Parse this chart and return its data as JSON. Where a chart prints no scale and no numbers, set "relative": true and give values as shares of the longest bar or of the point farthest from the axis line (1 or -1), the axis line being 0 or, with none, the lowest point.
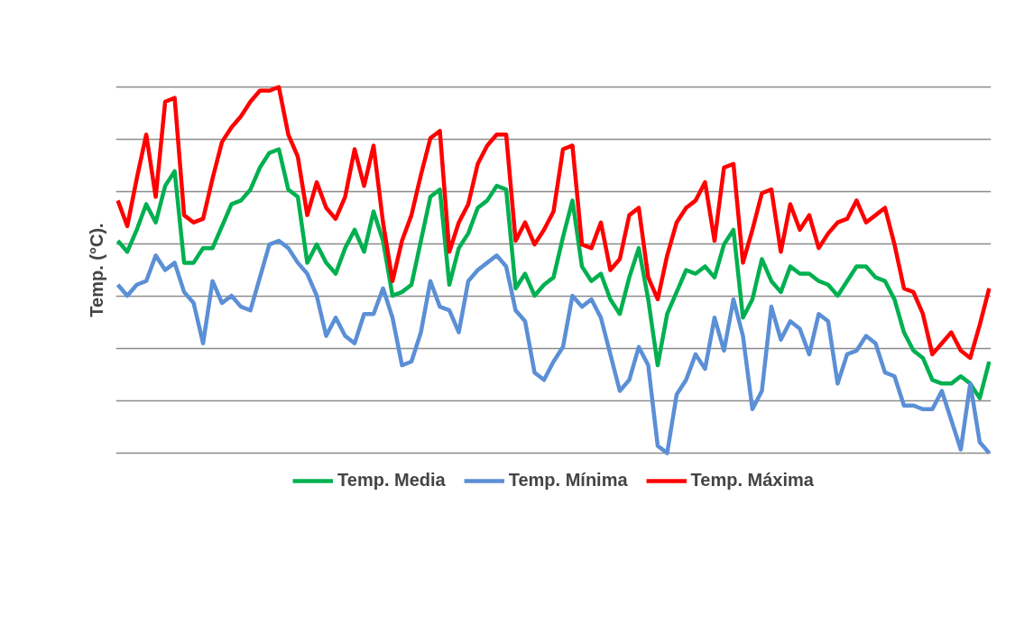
{
  "chart_data": {
    "type": "line",
    "ylabel": "Temp. (°C).",
    "relative": true,
    "grid": "y",
    "legend": "bottom",
    "tick_labels": false,
    "marker": "none",
    "line_style": "solid",
    "categories": [
      null,
      null,
      null,
      null,
      null,
      null,
      null,
      null,
      null,
      null,
      null,
      null,
      null,
      null,
      null,
      null,
      null,
      null,
      null,
      null,
      null,
      null,
      null,
      null,
      null,
      null,
      null,
      null,
      null,
      null,
      null,
      null,
      null,
      null,
      null,
      null,
      null,
      null,
      null,
      null,
      null,
      null,
      null,
      null,
      null,
      null,
      null,
      null,
      null,
      null,
      null,
      null,
      null,
      null,
      null,
      null,
      null,
      null,
      null,
      null,
      null,
      null,
      null,
      null,
      null,
      null,
      null,
      null,
      null,
      null,
      null,
      null,
      null,
      null,
      null,
      null,
      null,
      null,
      null,
      null,
      null,
      null,
      null,
      null,
      null,
      null,
      null,
      null,
      null,
      null,
      null,
      null,
      null
    ],
    "series": [
      {
        "name": "Temp. Media",
        "color": "#00b050",
        "values": [
          0.58,
          0.55,
          0.61,
          0.68,
          0.63,
          0.73,
          0.77,
          0.52,
          0.52,
          0.56,
          0.56,
          0.62,
          0.68,
          0.69,
          0.72,
          0.78,
          0.82,
          0.83,
          0.72,
          0.7,
          0.52,
          0.57,
          0.52,
          0.49,
          0.56,
          0.61,
          0.55,
          0.66,
          0.58,
          0.43,
          0.44,
          0.46,
          0.58,
          0.7,
          0.72,
          0.46,
          0.56,
          0.6,
          0.67,
          0.69,
          0.73,
          0.72,
          0.45,
          0.49,
          0.43,
          0.46,
          0.48,
          0.59,
          0.69,
          0.51,
          0.47,
          0.49,
          0.42,
          0.38,
          0.48,
          0.56,
          0.42,
          0.24,
          0.38,
          0.44,
          0.5,
          0.49,
          0.51,
          0.48,
          0.57,
          0.61,
          0.37,
          0.42,
          0.53,
          0.47,
          0.44,
          0.51,
          0.49,
          0.49,
          0.47,
          0.46,
          0.43,
          0.47,
          0.51,
          0.51,
          0.48,
          0.47,
          0.42,
          0.33,
          0.28,
          0.26,
          0.2,
          0.19,
          0.19,
          0.21,
          0.19,
          0.15,
          0.25
        ]
      },
      {
        "name": "Temp. Mínima",
        "color": "#5b8fd6",
        "values": [
          0.46,
          0.43,
          0.46,
          0.47,
          0.54,
          0.5,
          0.52,
          0.44,
          0.41,
          0.3,
          0.47,
          0.41,
          0.43,
          0.4,
          0.39,
          0.48,
          0.57,
          0.58,
          0.56,
          0.52,
          0.49,
          0.43,
          0.32,
          0.37,
          0.32,
          0.3,
          0.38,
          0.38,
          0.45,
          0.37,
          0.24,
          0.25,
          0.33,
          0.47,
          0.4,
          0.39,
          0.33,
          0.47,
          0.5,
          0.52,
          0.54,
          0.51,
          0.39,
          0.36,
          0.22,
          0.2,
          0.25,
          0.29,
          0.43,
          0.4,
          0.42,
          0.37,
          0.27,
          0.17,
          0.2,
          0.29,
          0.24,
          0.02,
          0.0,
          0.16,
          0.2,
          0.27,
          0.23,
          0.37,
          0.28,
          0.42,
          0.32,
          0.12,
          0.17,
          0.4,
          0.31,
          0.36,
          0.34,
          0.27,
          0.38,
          0.36,
          0.19,
          0.27,
          0.28,
          0.32,
          0.3,
          0.22,
          0.21,
          0.13,
          0.13,
          0.12,
          0.12,
          0.17,
          0.09,
          0.01,
          0.19,
          0.03,
          0.0
        ]
      },
      {
        "name": "Temp. Máxima",
        "color": "#ff0000",
        "values": [
          0.69,
          0.62,
          0.75,
          0.87,
          0.7,
          0.96,
          0.97,
          0.65,
          0.63,
          0.64,
          0.75,
          0.85,
          0.89,
          0.92,
          0.96,
          0.99,
          0.99,
          1.0,
          0.87,
          0.81,
          0.65,
          0.74,
          0.67,
          0.64,
          0.7,
          0.83,
          0.73,
          0.84,
          0.63,
          0.47,
          0.58,
          0.65,
          0.76,
          0.86,
          0.88,
          0.55,
          0.63,
          0.68,
          0.79,
          0.84,
          0.87,
          0.87,
          0.58,
          0.63,
          0.57,
          0.61,
          0.66,
          0.83,
          0.84,
          0.57,
          0.56,
          0.63,
          0.5,
          0.53,
          0.65,
          0.67,
          0.48,
          0.42,
          0.54,
          0.63,
          0.67,
          0.69,
          0.74,
          0.58,
          0.78,
          0.79,
          0.52,
          0.61,
          0.71,
          0.72,
          0.55,
          0.68,
          0.61,
          0.65,
          0.56,
          0.6,
          0.63,
          0.64,
          0.69,
          0.63,
          0.65,
          0.67,
          0.57,
          0.45,
          0.44,
          0.38,
          0.27,
          0.3,
          0.33,
          0.28,
          0.26,
          0.35,
          0.45
        ]
      }
    ]
  }
}
